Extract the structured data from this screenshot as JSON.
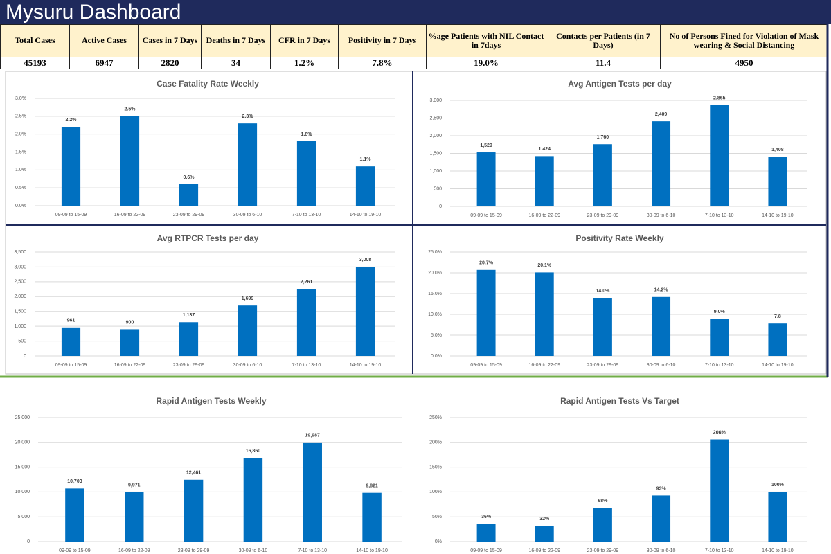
{
  "header": {
    "title": "Mysuru Dashboard"
  },
  "stats": {
    "headers": [
      "Total Cases",
      "Active Cases",
      "Cases in 7 Days",
      "Deaths in 7 Days",
      "CFR in 7 Days",
      "Positivity in 7 Days",
      "%age Patients with NIL Contact in 7days",
      "Contacts per Patients (in 7 Days)",
      "No of Persons Fined for Violation of Mask wearing & Social Distancing"
    ],
    "values": [
      "45193",
      "6947",
      "2820",
      "34",
      "1.2%",
      "7.8%",
      "19.0%",
      "11.4",
      "4950"
    ]
  },
  "chart_data": [
    {
      "type": "bar",
      "title": "Case Fatality Rate Weekly",
      "color": "#0070c0",
      "grid": true,
      "categories": [
        "09-09 to 15-09",
        "16-09 to 22-09",
        "23-09 to 29-09",
        "30-09 to 6-10",
        "7-10 to 13-10",
        "14-10 to 19-10"
      ],
      "values": [
        2.2,
        2.5,
        0.6,
        2.3,
        1.8,
        1.1
      ],
      "value_labels": [
        "2.2%",
        "2.5%",
        "0.6%",
        "2.3%",
        "1.8%",
        "1.1%"
      ],
      "ylim": [
        0,
        3
      ],
      "yticks": [
        {
          "value": 0,
          "label": "0.0%"
        },
        {
          "value": 0.5,
          "label": "0.5%"
        },
        {
          "value": 1,
          "label": "1.0%"
        },
        {
          "value": 1.5,
          "label": "1.5%"
        },
        {
          "value": 2,
          "label": "2.0%"
        },
        {
          "value": 2.5,
          "label": "2.5%"
        },
        {
          "value": 3,
          "label": "3.0%"
        }
      ]
    },
    {
      "type": "bar",
      "title": "Avg Antigen Tests per day",
      "color": "#0070c0",
      "grid": true,
      "categories": [
        "09-09 to 15-09",
        "16-09 to 22-09",
        "23-09 to 29-09",
        "30-09 to 6-10",
        "7-10 to 13-10",
        "14-10 to 19-10"
      ],
      "values": [
        1529,
        1424,
        1760,
        2409,
        2865,
        1408
      ],
      "value_labels": [
        "1,529",
        "1,424",
        "1,760",
        "2,409",
        "2,865",
        "1,408"
      ],
      "ylim": [
        0,
        3000
      ],
      "yticks": [
        0,
        500,
        {
          "value": 1000,
          "label": "1,000"
        },
        {
          "value": 1500,
          "label": "1,500"
        },
        {
          "value": 2000,
          "label": "2,000"
        },
        {
          "value": 2500,
          "label": "2,500"
        },
        {
          "value": 3000,
          "label": "3,000"
        }
      ]
    },
    {
      "type": "bar",
      "title": "Avg RTPCR Tests per day",
      "color": "#0070c0",
      "grid": true,
      "categories": [
        "09-09 to 15-09",
        "16-09 to 22-09",
        "23-09 to 29-09",
        "30-09 to 6-10",
        "7-10 to 13-10",
        "14-10 to 19-10"
      ],
      "values": [
        961,
        900,
        1137,
        1699,
        2261,
        3008
      ],
      "value_labels": [
        "961",
        "900",
        "1,137",
        "1,699",
        "2,261",
        "3,008"
      ],
      "ylim": [
        0,
        3500
      ],
      "yticks": [
        0,
        500,
        {
          "value": 1000,
          "label": "1,000"
        },
        {
          "value": 1500,
          "label": "1,500"
        },
        {
          "value": 2000,
          "label": "2,000"
        },
        {
          "value": 2500,
          "label": "2,500"
        },
        {
          "value": 3000,
          "label": "3,000"
        },
        {
          "value": 3500,
          "label": "3,500"
        }
      ]
    },
    {
      "type": "bar",
      "title": "Positivity Rate Weekly",
      "color": "#0070c0",
      "grid": true,
      "categories": [
        "09-09 to 15-09",
        "16-09 to 22-09",
        "23-09 to 29-09",
        "30-09 to 6-10",
        "7-10 to 13-10",
        "14-10 to 19-10"
      ],
      "values": [
        20.7,
        20.1,
        14.0,
        14.2,
        9.0,
        7.8
      ],
      "value_labels": [
        "20.7%",
        "20.1%",
        "14.0%",
        "14.2%",
        "9.0%",
        "7.8"
      ],
      "ylim": [
        0,
        25
      ],
      "yticks": [
        {
          "value": 0,
          "label": "0.0%"
        },
        {
          "value": 5,
          "label": "5.0%"
        },
        {
          "value": 10,
          "label": "10.0%"
        },
        {
          "value": 15,
          "label": "15.0%"
        },
        {
          "value": 20,
          "label": "20.0%"
        },
        {
          "value": 25,
          "label": "25.0%"
        }
      ]
    },
    {
      "type": "bar",
      "title": "Rapid Antigen Tests Weekly",
      "color": "#0070c0",
      "grid": true,
      "categories": [
        "09-09 to 15-09",
        "16-09 to 22-09",
        "23-09 to 29-09",
        "30-09 to 6-10",
        "7-10 to 13-10",
        "14-10 to 19-10"
      ],
      "values": [
        10703,
        9971,
        12461,
        16860,
        19987,
        9821
      ],
      "value_labels": [
        "10,703",
        "9,971",
        "12,461",
        "16,860",
        "19,987",
        "9,821"
      ],
      "ylim": [
        0,
        25000
      ],
      "yticks": [
        0,
        {
          "value": 5000,
          "label": "5,000"
        },
        {
          "value": 10000,
          "label": "10,000"
        },
        {
          "value": 15000,
          "label": "15,000"
        },
        {
          "value": 20000,
          "label": "20,000"
        },
        {
          "value": 25000,
          "label": "25,000"
        }
      ]
    },
    {
      "type": "bar",
      "title": "Rapid Antigen Tests Vs Target",
      "color": "#0070c0",
      "grid": true,
      "categories": [
        "09-09 to 15-09",
        "16-09 to 22-09",
        "23-09 to 29-09",
        "30-09 to 6-10",
        "7-10 to 13-10",
        "14-10 to 19-10"
      ],
      "values": [
        36,
        32,
        68,
        93,
        206,
        100
      ],
      "value_labels": [
        "36%",
        "32%",
        "68%",
        "93%",
        "206%",
        "100%"
      ],
      "ylim": [
        0,
        250
      ],
      "yticks": [
        {
          "value": 0,
          "label": "0%"
        },
        {
          "value": 50,
          "label": "50%"
        },
        {
          "value": 100,
          "label": "100%"
        },
        {
          "value": 150,
          "label": "150%"
        },
        {
          "value": 200,
          "label": "200%"
        },
        {
          "value": 250,
          "label": "250%"
        }
      ]
    }
  ]
}
